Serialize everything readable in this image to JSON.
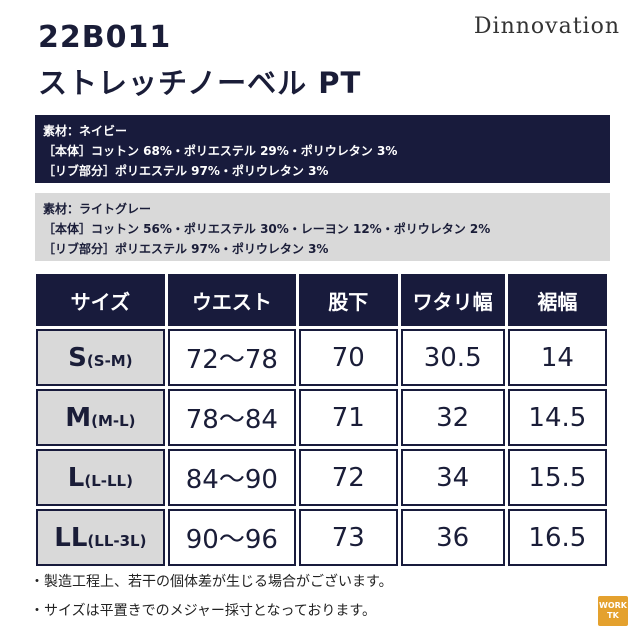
{
  "product": {
    "code": "22B011",
    "name": "ストレッチノーベル PT",
    "brand": "Dinnovation"
  },
  "materials": [
    {
      "color_line": "素材：ネイビー",
      "body_line": "［本体］コットン 68%・ポリエステル 29%・ポリウレタン 3%",
      "rib_line": "［リブ部分］ポリエステル 97%・ポリウレタン 3%"
    },
    {
      "color_line": "素材：ライトグレー",
      "body_line": "［本体］コットン 56%・ポリエステル 30%・レーヨン 12%・ポリウレタン 2%",
      "rib_line": "［リブ部分］ポリエステル 97%・ポリウレタン 3%"
    }
  ],
  "size_table": {
    "headers": [
      "サイズ",
      "ウエスト",
      "股下",
      "ワタリ幅",
      "裾幅"
    ],
    "rows": [
      {
        "size": "S",
        "range": "(S-M)",
        "waist": "72～78",
        "inseam": "70",
        "thigh": "30.5",
        "hem": "14"
      },
      {
        "size": "M",
        "range": "(M-L)",
        "waist": "78～84",
        "inseam": "71",
        "thigh": "32",
        "hem": "14.5"
      },
      {
        "size": "L",
        "range": "(L-LL)",
        "waist": "84～90",
        "inseam": "72",
        "thigh": "34",
        "hem": "15.5"
      },
      {
        "size": "LL",
        "range": "(LL-3L)",
        "waist": "90～96",
        "inseam": "73",
        "thigh": "36",
        "hem": "16.5"
      }
    ]
  },
  "notes": [
    "・製造工程上、若干の個体差が生じる場合がございます。",
    "・サイズは平置きでのメジャー採寸となっております。"
  ],
  "logo": {
    "text_top": "WORK",
    "text_bottom": "TK"
  },
  "colors": {
    "navy": "#181b3c",
    "gray": "#d9d9d9",
    "logo_orange": "#e4a12e"
  }
}
